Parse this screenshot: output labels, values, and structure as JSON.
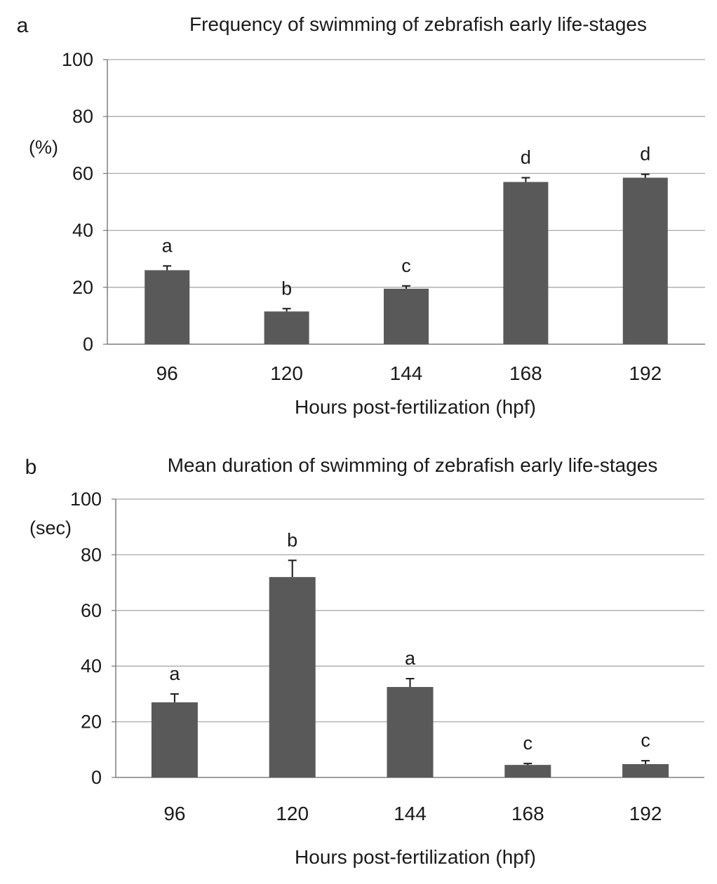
{
  "chart_data": [
    {
      "type": "bar",
      "panel_label": "a",
      "title": "Frequency of swimming  of zebrafish early life-stages",
      "ylabel": "(%)",
      "xlabel": "Hours post-fertilization (hpf)",
      "categories": [
        "96",
        "120",
        "144",
        "168",
        "192"
      ],
      "values": [
        26,
        11.5,
        19.5,
        57,
        58.5
      ],
      "errors": [
        1.5,
        1,
        1,
        1.5,
        1.2
      ],
      "significance": [
        "a",
        "b",
        "c",
        "d",
        "d"
      ],
      "ylim": [
        0,
        100
      ],
      "yticks": [
        0,
        20,
        40,
        60,
        80,
        100
      ],
      "grid": true,
      "bar_color": "#595959"
    },
    {
      "type": "bar",
      "panel_label": "b",
      "title": "Mean duration of swimming of zebrafish early life-stages",
      "ylabel": "(sec)",
      "xlabel": "Hours post-fertilization (hpf)",
      "categories": [
        "96",
        "120",
        "144",
        "168",
        "192"
      ],
      "values": [
        27,
        72,
        32.5,
        4.5,
        4.8
      ],
      "errors": [
        3,
        6,
        3,
        0.5,
        1.2
      ],
      "significance": [
        "a",
        "b",
        "a",
        "c",
        "c"
      ],
      "ylim": [
        0,
        100
      ],
      "yticks": [
        0,
        20,
        40,
        60,
        80,
        100
      ],
      "grid": true,
      "bar_color": "#595959"
    }
  ]
}
